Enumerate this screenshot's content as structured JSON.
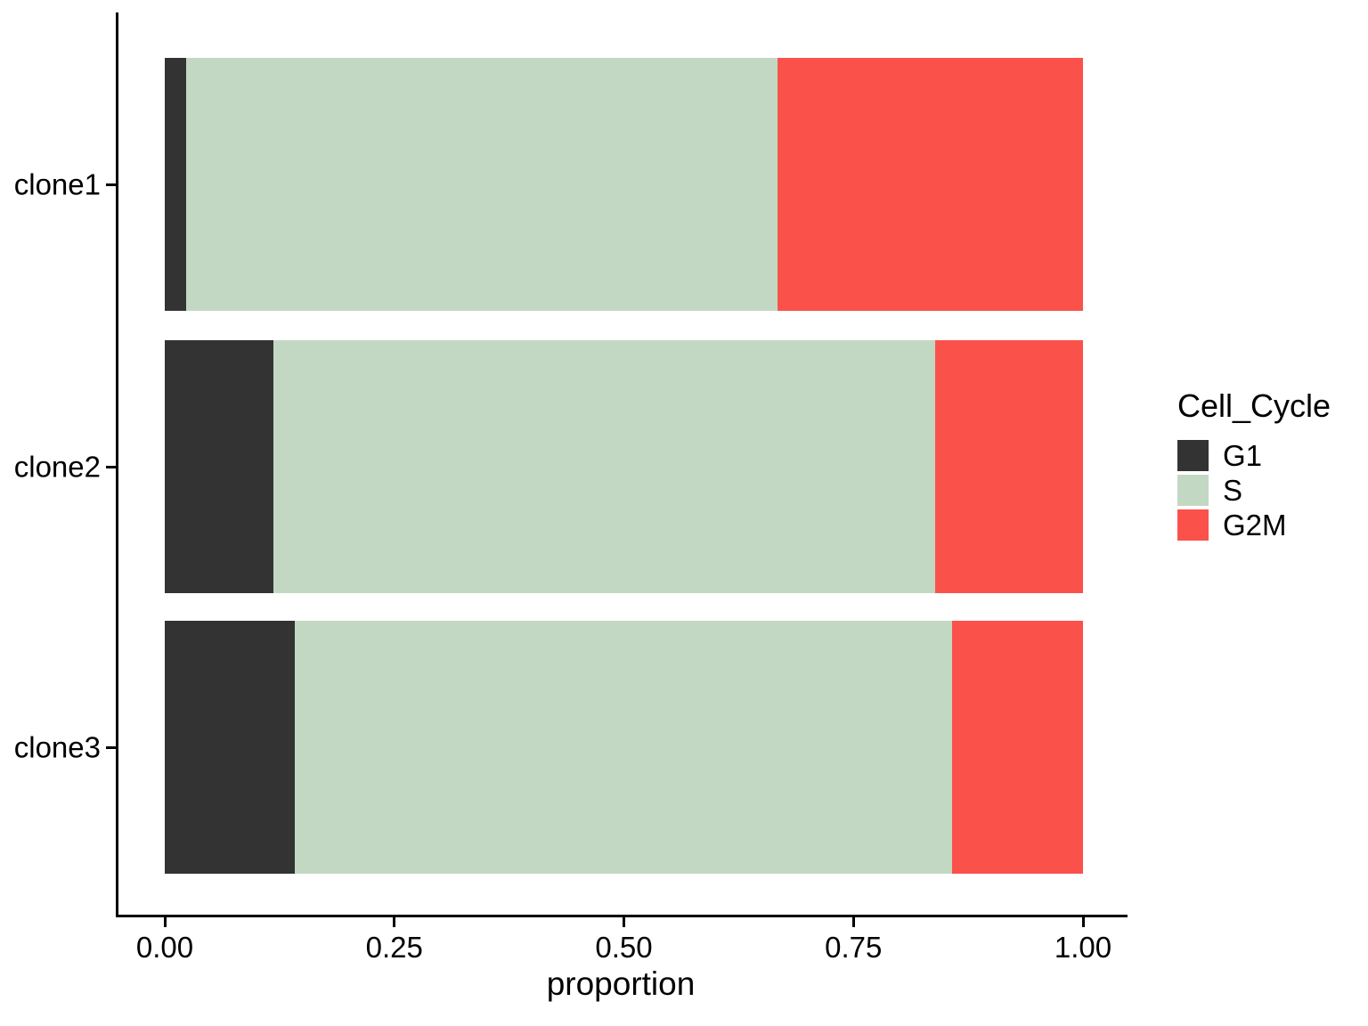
{
  "chart_data": {
    "type": "bar",
    "orientation": "horizontal",
    "stacked": true,
    "title": "",
    "xlabel": "proportion",
    "ylabel": "",
    "xlim": [
      0,
      1
    ],
    "grid": false,
    "categories": [
      "clone1",
      "clone2",
      "clone3"
    ],
    "series": [
      {
        "name": "G1",
        "color": "#333333",
        "values": [
          0.023,
          0.118,
          0.142
        ]
      },
      {
        "name": "S",
        "color": "#c2d8c2",
        "values": [
          0.644,
          0.721,
          0.715
        ]
      },
      {
        "name": "G2M",
        "color": "#fb514b",
        "values": [
          0.333,
          0.161,
          0.143
        ]
      }
    ],
    "x_ticks": [
      {
        "value": 0.0,
        "label": "0.00"
      },
      {
        "value": 0.25,
        "label": "0.25"
      },
      {
        "value": 0.5,
        "label": "0.50"
      },
      {
        "value": 0.75,
        "label": "0.75"
      },
      {
        "value": 1.0,
        "label": "1.00"
      }
    ],
    "legend": {
      "title": "Cell_Cycle",
      "position": "right",
      "entries": [
        "G1",
        "S",
        "G2M"
      ]
    },
    "colors": {
      "axis": "#000000",
      "text": "#000000",
      "background": "#ffffff"
    }
  }
}
